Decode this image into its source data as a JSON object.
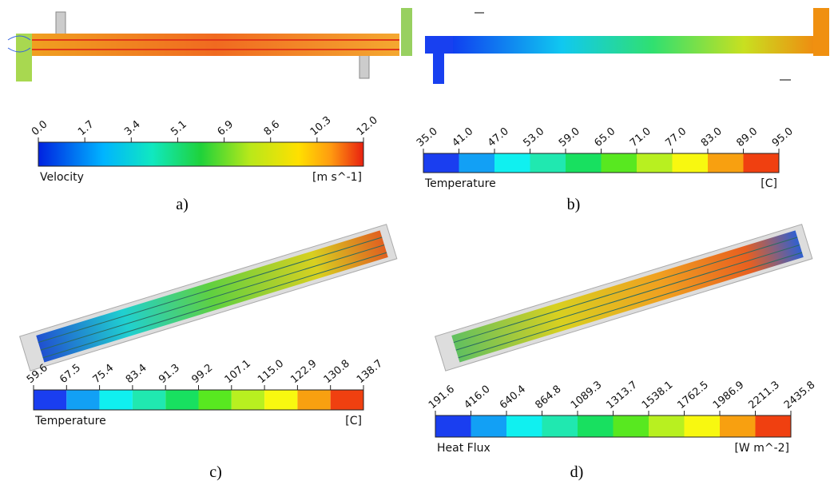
{
  "panels": [
    {
      "label": "a)",
      "legend": {
        "title": "Velocity",
        "unit": "[m s^-1]",
        "ticks": [
          "0.0",
          "1.7",
          "3.4",
          "5.1",
          "6.9",
          "8.6",
          "10.3",
          "12.0"
        ]
      }
    },
    {
      "label": "b)",
      "legend": {
        "title": "Temperature",
        "unit": "[C]",
        "ticks": [
          "35.0",
          "41.0",
          "47.0",
          "53.0",
          "59.0",
          "65.0",
          "71.0",
          "77.0",
          "83.0",
          "89.0",
          "95.0"
        ]
      }
    },
    {
      "label": "c)",
      "legend": {
        "title": "Temperature",
        "unit": "[C]",
        "ticks": [
          "59.6",
          "67.5",
          "75.4",
          "83.4",
          "91.3",
          "99.2",
          "107.1",
          "115.0",
          "122.9",
          "130.8",
          "138.7"
        ]
      }
    },
    {
      "label": "d)",
      "legend": {
        "title": "Heat Flux",
        "unit": "[W m^-2]",
        "ticks": [
          "191.6",
          "416.0",
          "640.4",
          "864.8",
          "1089.3",
          "1313.7",
          "1538.1",
          "1762.5",
          "1986.9",
          "2211.3",
          "2435.8"
        ]
      }
    }
  ]
}
